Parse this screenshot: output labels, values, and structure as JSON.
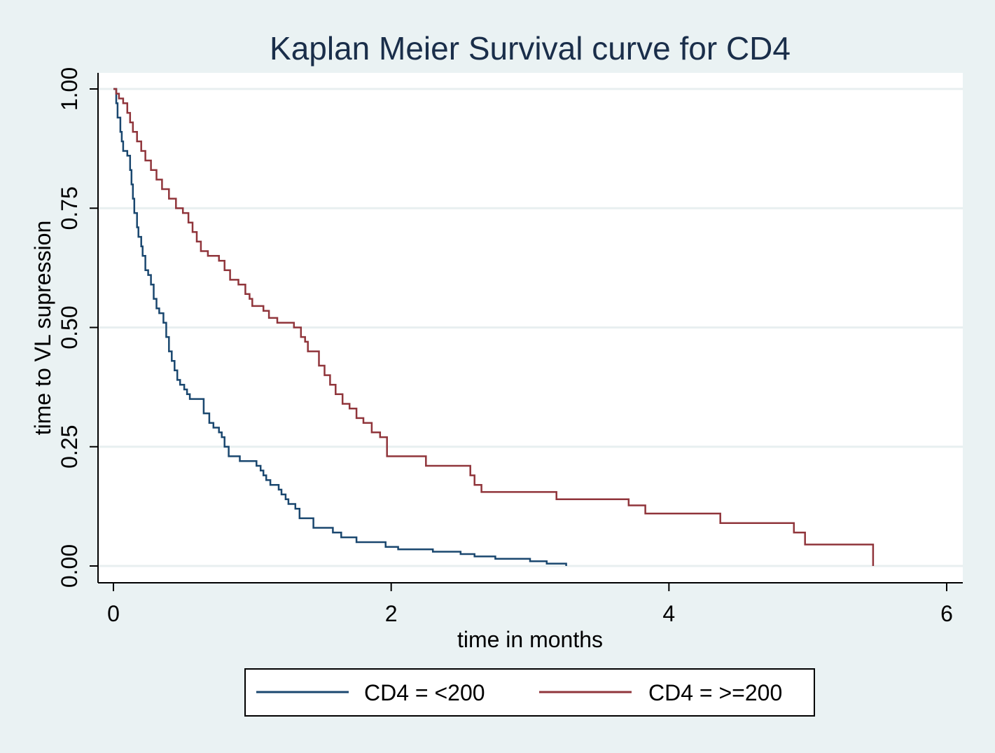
{
  "chart_data": {
    "type": "line",
    "title": "Kaplan Meier Survival curve for CD4",
    "xlabel": "time in months",
    "ylabel": "time to VL supression",
    "xlim": [
      0,
      6
    ],
    "ylim": [
      0,
      1
    ],
    "x_ticks": [
      0,
      2,
      4,
      6
    ],
    "x_tick_labels": [
      "0",
      "2",
      "4",
      "6"
    ],
    "y_ticks": [
      0,
      0.25,
      0.5,
      0.75,
      1
    ],
    "y_tick_labels": [
      "0.00",
      "0.25",
      "0.50",
      "0.75",
      "1.00"
    ],
    "grid": true,
    "legend_position": "bottom",
    "series": [
      {
        "name": "CD4 = <200",
        "color": "#1a476f",
        "step": true,
        "points": [
          [
            0,
            1.0
          ],
          [
            0.02,
            0.97
          ],
          [
            0.03,
            0.94
          ],
          [
            0.05,
            0.91
          ],
          [
            0.06,
            0.89
          ],
          [
            0.07,
            0.87
          ],
          [
            0.1,
            0.86
          ],
          [
            0.12,
            0.83
          ],
          [
            0.13,
            0.8
          ],
          [
            0.14,
            0.77
          ],
          [
            0.15,
            0.74
          ],
          [
            0.17,
            0.71
          ],
          [
            0.18,
            0.69
          ],
          [
            0.2,
            0.67
          ],
          [
            0.21,
            0.65
          ],
          [
            0.23,
            0.62
          ],
          [
            0.25,
            0.61
          ],
          [
            0.27,
            0.59
          ],
          [
            0.29,
            0.56
          ],
          [
            0.31,
            0.54
          ],
          [
            0.33,
            0.53
          ],
          [
            0.36,
            0.51
          ],
          [
            0.38,
            0.48
          ],
          [
            0.4,
            0.45
          ],
          [
            0.42,
            0.43
          ],
          [
            0.44,
            0.41
          ],
          [
            0.46,
            0.39
          ],
          [
            0.48,
            0.38
          ],
          [
            0.51,
            0.37
          ],
          [
            0.53,
            0.36
          ],
          [
            0.55,
            0.35
          ],
          [
            0.65,
            0.32
          ],
          [
            0.69,
            0.3
          ],
          [
            0.72,
            0.29
          ],
          [
            0.76,
            0.28
          ],
          [
            0.78,
            0.27
          ],
          [
            0.8,
            0.25
          ],
          [
            0.83,
            0.23
          ],
          [
            0.91,
            0.22
          ],
          [
            1.03,
            0.21
          ],
          [
            1.06,
            0.2
          ],
          [
            1.08,
            0.19
          ],
          [
            1.1,
            0.18
          ],
          [
            1.13,
            0.17
          ],
          [
            1.19,
            0.16
          ],
          [
            1.21,
            0.15
          ],
          [
            1.24,
            0.14
          ],
          [
            1.26,
            0.13
          ],
          [
            1.31,
            0.12
          ],
          [
            1.34,
            0.1
          ],
          [
            1.44,
            0.08
          ],
          [
            1.58,
            0.07
          ],
          [
            1.64,
            0.06
          ],
          [
            1.75,
            0.05
          ],
          [
            1.96,
            0.04
          ],
          [
            2.05,
            0.035
          ],
          [
            2.3,
            0.03
          ],
          [
            2.5,
            0.025
          ],
          [
            2.6,
            0.02
          ],
          [
            2.75,
            0.015
          ],
          [
            3.0,
            0.01
          ],
          [
            3.12,
            0.005
          ],
          [
            3.26,
            0.0
          ]
        ]
      },
      {
        "name": "CD4 = >=200",
        "color": "#90353b",
        "step": true,
        "points": [
          [
            0,
            1.0
          ],
          [
            0.02,
            0.99
          ],
          [
            0.04,
            0.98
          ],
          [
            0.07,
            0.97
          ],
          [
            0.1,
            0.95
          ],
          [
            0.12,
            0.93
          ],
          [
            0.14,
            0.91
          ],
          [
            0.17,
            0.89
          ],
          [
            0.2,
            0.87
          ],
          [
            0.23,
            0.85
          ],
          [
            0.27,
            0.83
          ],
          [
            0.31,
            0.81
          ],
          [
            0.35,
            0.79
          ],
          [
            0.4,
            0.77
          ],
          [
            0.45,
            0.75
          ],
          [
            0.5,
            0.74
          ],
          [
            0.54,
            0.72
          ],
          [
            0.57,
            0.7
          ],
          [
            0.6,
            0.68
          ],
          [
            0.63,
            0.66
          ],
          [
            0.68,
            0.65
          ],
          [
            0.76,
            0.64
          ],
          [
            0.8,
            0.62
          ],
          [
            0.84,
            0.6
          ],
          [
            0.9,
            0.59
          ],
          [
            0.95,
            0.57
          ],
          [
            0.98,
            0.56
          ],
          [
            1.0,
            0.545
          ],
          [
            1.08,
            0.535
          ],
          [
            1.12,
            0.52
          ],
          [
            1.18,
            0.51
          ],
          [
            1.3,
            0.5
          ],
          [
            1.35,
            0.48
          ],
          [
            1.38,
            0.47
          ],
          [
            1.4,
            0.45
          ],
          [
            1.48,
            0.42
          ],
          [
            1.52,
            0.4
          ],
          [
            1.56,
            0.38
          ],
          [
            1.6,
            0.36
          ],
          [
            1.65,
            0.34
          ],
          [
            1.7,
            0.33
          ],
          [
            1.75,
            0.31
          ],
          [
            1.8,
            0.3
          ],
          [
            1.86,
            0.28
          ],
          [
            1.92,
            0.27
          ],
          [
            1.97,
            0.23
          ],
          [
            2.25,
            0.21
          ],
          [
            2.57,
            0.19
          ],
          [
            2.6,
            0.17
          ],
          [
            2.65,
            0.155
          ],
          [
            3.19,
            0.14
          ],
          [
            3.71,
            0.127
          ],
          [
            3.83,
            0.11
          ],
          [
            4.37,
            0.09
          ],
          [
            4.9,
            0.07
          ],
          [
            4.98,
            0.045
          ],
          [
            5.47,
            0.0
          ]
        ]
      }
    ]
  }
}
